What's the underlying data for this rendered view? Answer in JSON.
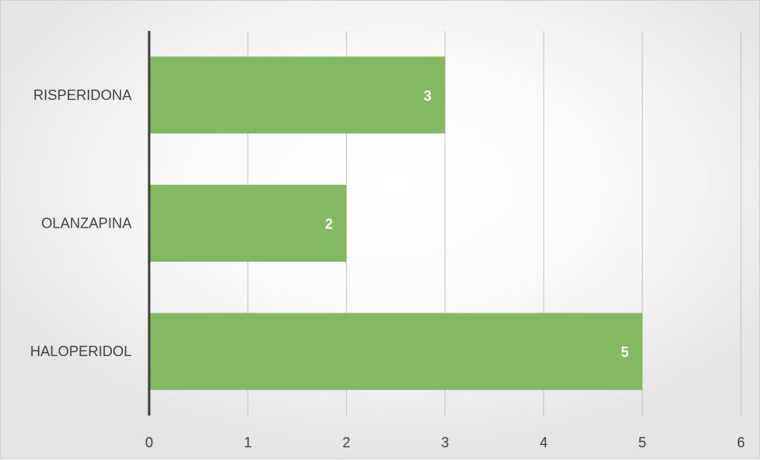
{
  "chart_data": {
    "type": "bar",
    "orientation": "horizontal",
    "categories": [
      "RISPERIDONA",
      "OLANZAPINA",
      "HALOPERIDOL"
    ],
    "values": [
      3,
      2,
      5
    ],
    "data_labels": [
      "3",
      "2",
      "5"
    ],
    "title": "",
    "xlabel": "",
    "ylabel": "",
    "xlim": [
      0,
      6
    ],
    "x_ticks": [
      "0",
      "1",
      "2",
      "3",
      "4",
      "5",
      "6"
    ],
    "grid": true,
    "legend": "none",
    "bar_color": "#84b964",
    "axis_color": "#404040",
    "gridline_color": "#c0c0c0"
  }
}
